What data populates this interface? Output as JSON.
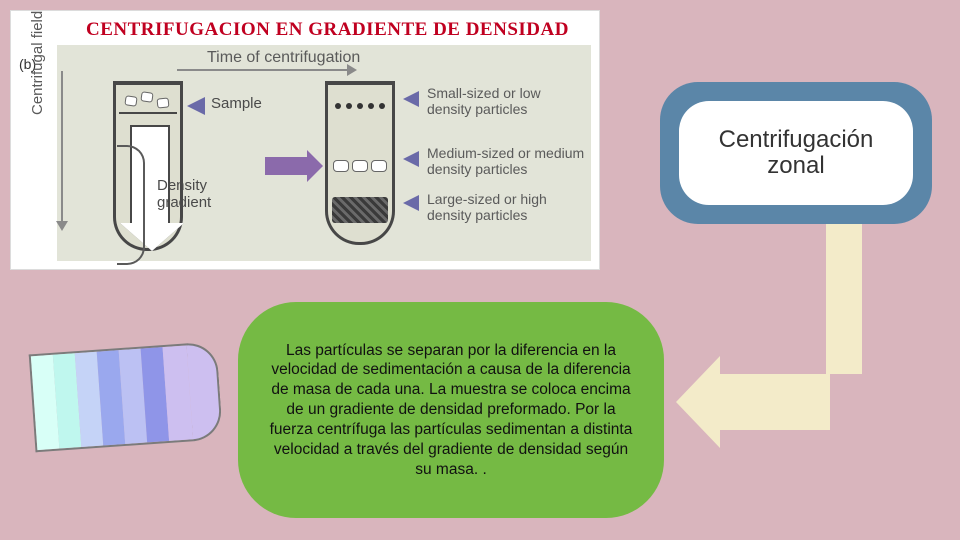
{
  "background_color": "#d9b5bd",
  "diagram": {
    "panel_label": "(b)",
    "title": "CENTRIFUGACION EN GRADIENTE DE DENSIDAD",
    "title_color": "#c00020",
    "title_fontfamily": "Times New Roman",
    "title_fontsize": 19,
    "inner_bg": "#e2e4d8",
    "x_axis_label": "Time of centrifugation",
    "y_axis_label": "Centrifugal field",
    "axis_color": "#8a8a8a",
    "axis_label_color": "#5a5a5a",
    "axis_fontsize": 15,
    "tube_border_color": "#474747",
    "left_tube": {
      "sample_label": "Sample",
      "gradient_label": "Density\ngradient",
      "pointer_color": "#6a6aa8"
    },
    "transition_arrow_color": "#8b6aab",
    "right_tube_labels": {
      "small": "Small-sized or low\ndensity particles",
      "medium": "Medium-sized or medium\ndensity particles",
      "large": "Large-sized or high\ndensity particles",
      "label_color": "#5a5a5a",
      "pointer_color": "#6a6aa8"
    }
  },
  "title_bubble": {
    "text": "Centrifugación\nzonal",
    "outer_color": "#5b86a8",
    "inner_color": "#ffffff",
    "text_color": "#333333",
    "fontsize": 24
  },
  "connector": {
    "color": "#f3ebc9"
  },
  "description": {
    "text": "Las partículas se separan por la diferencia en la velocidad de sedimentación a causa de la diferencia de masa de cada una. La muestra se coloca encima de un gradiente de densidad preformado. Por la fuerza centrífuga las partículas sedimentan a distinta velocidad a través del gradiente de densidad según su masa. .",
    "bg_color": "#75ba44",
    "text_color": "#111111",
    "fontsize": 15.5
  },
  "gradient_tube": {
    "rotation_deg": -4,
    "border_color": "#7b7b7b",
    "segments": [
      "#d8fff7",
      "#bff7ee",
      "#c5d3f7",
      "#9aa8ee",
      "#bcc1f3",
      "#8f95e8",
      "#cdbff0"
    ],
    "cap_color": "#cdbff0"
  }
}
